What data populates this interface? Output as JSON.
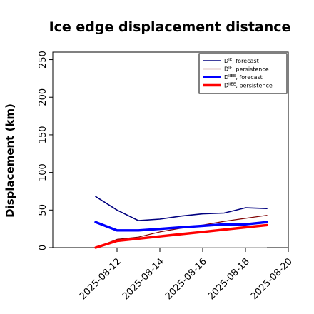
{
  "chart_data": {
    "type": "line",
    "title": "Ice edge displacement distance",
    "ylabel": "Displacement (km)",
    "xlabel": "",
    "ylim": [
      0,
      260
    ],
    "xlim": [
      "2025-08-09",
      "2025-08-20"
    ],
    "yticks": [
      0,
      50,
      100,
      150,
      200,
      250
    ],
    "xticks": [
      {
        "date": "2025-08-12",
        "label": "2025-08-12",
        "color": "#1e8c1e"
      },
      {
        "date": "2025-08-14",
        "label": "2025-08-14",
        "color": "#000000"
      },
      {
        "date": "2025-08-16",
        "label": "2025-08-16",
        "color": "#000000"
      },
      {
        "date": "2025-08-18",
        "label": "2025-08-18",
        "color": "#000000"
      },
      {
        "date": "2025-08-20",
        "label": "2025-08-20",
        "color": "#000000"
      }
    ],
    "legend_position": "top-right",
    "x": [
      "2025-08-11",
      "2025-08-12",
      "2025-08-13",
      "2025-08-14",
      "2025-08-15",
      "2025-08-16",
      "2025-08-17",
      "2025-08-18",
      "2025-08-19"
    ],
    "series": [
      {
        "name": "D^IE, forecast",
        "base": "D",
        "sup": "IE",
        "suffix": ", forecast",
        "color": "#00007f",
        "width": 1.6,
        "values": [
          68,
          50,
          36,
          38,
          42,
          45,
          46,
          53,
          52
        ]
      },
      {
        "name": "D^IE, persistence",
        "base": "D",
        "sup": "IE",
        "suffix": ", persistence",
        "color": "#7f0000",
        "width": 1.2,
        "values": [
          0,
          11,
          14,
          21,
          26,
          30,
          35,
          39,
          43
        ]
      },
      {
        "name": "D^IIEE, forecast",
        "base": "D",
        "sup": "IIEE",
        "suffix": ", forecast",
        "color": "#0000ff",
        "width": 3.4,
        "values": [
          34,
          23,
          23,
          25,
          27,
          29,
          31,
          31,
          34
        ]
      },
      {
        "name": "D^IIEE, persistence",
        "base": "D",
        "sup": "IIEE",
        "suffix": ", persistence",
        "color": "#ff0000",
        "width": 3.4,
        "values": [
          0,
          9,
          12,
          15,
          18,
          21,
          24,
          27,
          30
        ]
      }
    ],
    "reference_line": {
      "y": 0,
      "color": "#808080"
    },
    "grid": false
  }
}
